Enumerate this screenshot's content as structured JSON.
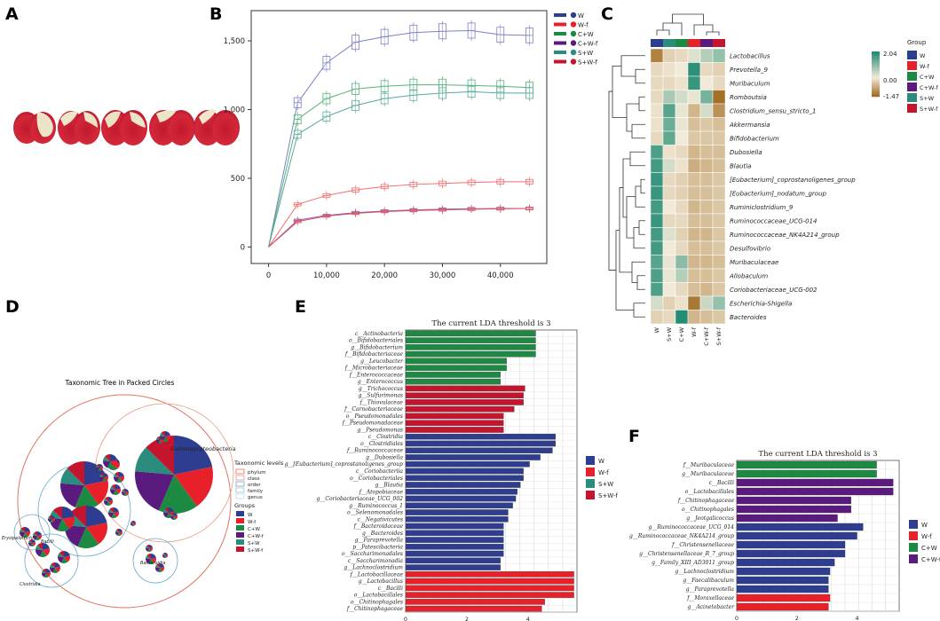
{
  "panels": {
    "A": {
      "letter": "A"
    },
    "B": {
      "letter": "B"
    },
    "C": {
      "letter": "C"
    },
    "D": {
      "letter": "D"
    },
    "E": {
      "letter": "E"
    },
    "F": {
      "letter": "F"
    }
  },
  "colors": {
    "W": "#2e3d8f",
    "W-f": "#e8202a",
    "C+W": "#1d8a44",
    "C+W-f": "#5a1a7e",
    "S+W": "#2a8c7c",
    "S+W-f": "#c4142e",
    "heat_hi": "#1f8a72",
    "heat_mid": "#f2ead8",
    "heat_lo": "#a06a1e"
  },
  "chart_data": [
    {
      "id": "B",
      "type": "line",
      "title": "",
      "xlabel": "",
      "ylabel": "",
      "xlim": [
        -3000,
        48000
      ],
      "ylim": [
        -120,
        1720
      ],
      "xticks": [
        0,
        10000,
        20000,
        30000,
        40000
      ],
      "xtick_labels": [
        "0",
        "10,000",
        "20,000",
        "30,000",
        "40,000"
      ],
      "yticks": [
        0,
        500,
        1000,
        1500
      ],
      "ytick_labels": [
        "0",
        "500",
        "1,000",
        "1,500"
      ],
      "x": [
        0,
        5000,
        10000,
        15000,
        20000,
        25000,
        30000,
        35000,
        40000,
        45000
      ],
      "series": [
        {
          "name": "W",
          "color": "#7b80c4",
          "values": [
            0,
            1050,
            1340,
            1490,
            1530,
            1560,
            1570,
            1575,
            1545,
            1540
          ]
        },
        {
          "name": "W-f",
          "color": "#f26d6d",
          "values": [
            0,
            310,
            375,
            415,
            440,
            455,
            463,
            470,
            475,
            475
          ]
        },
        {
          "name": "C+W",
          "color": "#55b27a",
          "values": [
            0,
            930,
            1080,
            1150,
            1170,
            1180,
            1180,
            1175,
            1170,
            1160
          ]
        },
        {
          "name": "C+W-f",
          "color": "#8f5aa8",
          "values": [
            0,
            195,
            230,
            250,
            262,
            270,
            275,
            278,
            280,
            280
          ]
        },
        {
          "name": "S+W",
          "color": "#5aa99a",
          "values": [
            0,
            820,
            950,
            1030,
            1080,
            1105,
            1120,
            1130,
            1120,
            1120
          ]
        },
        {
          "name": "S+W-f",
          "color": "#d8505f",
          "values": [
            0,
            185,
            225,
            245,
            258,
            265,
            270,
            275,
            278,
            280
          ]
        }
      ],
      "legend": [
        "W",
        "W-f",
        "C+W",
        "C+W-f",
        "S+W",
        "S+W-f"
      ]
    },
    {
      "id": "C",
      "type": "heatmap",
      "columns": [
        "W",
        "S+W",
        "C+W",
        "W-f",
        "C+W-f",
        "S+W-f"
      ],
      "rows": [
        "Lactobacillus",
        "Prevotella_9",
        "Muribaculum",
        "Romboutsia",
        "Clostridium_sensu_stricto_1",
        "Akkermansia",
        "Bifidobacterium",
        "Dubosiella",
        "Blautia",
        "[Eubacterium]_coprostanoligenes_group",
        "[Eubacterium]_nodatum_group",
        "Ruminiclostridium_9",
        "Ruminococcaceae_UCG-014",
        "Ruminococcaceae_NK4A214_group",
        "Desulfovibrio",
        "Muribaculaceae",
        "Allobaculum",
        "Coriobacteriaceae_UCG-002",
        "Escherichia-Shigella",
        "Bacteroides"
      ],
      "values": [
        [
          -1.2,
          -0.3,
          -0.2,
          0.2,
          0.6,
          0.9
        ],
        [
          -0.2,
          -0.1,
          0.0,
          1.9,
          -0.2,
          -0.3
        ],
        [
          -0.2,
          -0.2,
          -0.1,
          1.8,
          0.0,
          -0.2
        ],
        [
          -0.2,
          0.7,
          0.3,
          0.1,
          1.2,
          -1.4
        ],
        [
          -0.1,
          1.5,
          0.1,
          -0.6,
          0.3,
          -1.0
        ],
        [
          -0.1,
          1.3,
          0.1,
          -0.5,
          -0.4,
          -0.5
        ],
        [
          -0.2,
          1.4,
          0.0,
          -0.4,
          -0.4,
          -0.4
        ],
        [
          1.6,
          -0.1,
          -0.2,
          -0.6,
          -0.5,
          -0.5
        ],
        [
          1.7,
          0.3,
          -0.1,
          -0.7,
          -0.6,
          -0.5
        ],
        [
          1.8,
          -0.2,
          -0.3,
          -0.5,
          -0.5,
          -0.4
        ],
        [
          1.8,
          -0.2,
          -0.3,
          -0.5,
          -0.5,
          -0.4
        ],
        [
          1.7,
          0.0,
          -0.2,
          -0.6,
          -0.5,
          -0.4
        ],
        [
          1.8,
          -0.2,
          -0.2,
          -0.5,
          -0.5,
          -0.4
        ],
        [
          1.7,
          0.2,
          -0.3,
          -0.6,
          -0.6,
          -0.4
        ],
        [
          1.7,
          0.0,
          -0.2,
          -0.5,
          -0.5,
          -0.4
        ],
        [
          1.5,
          0.1,
          1.0,
          -0.6,
          -0.6,
          -0.5
        ],
        [
          1.6,
          0.1,
          0.6,
          -0.5,
          -0.5,
          -0.4
        ],
        [
          1.6,
          0.0,
          -0.2,
          -0.5,
          -0.6,
          -0.4
        ],
        [
          0.3,
          -0.3,
          -0.1,
          -1.3,
          0.4,
          0.9
        ],
        [
          -0.3,
          -0.2,
          2.0,
          -0.6,
          -0.5,
          -0.4
        ]
      ],
      "vmin": -1.47,
      "vmax": 2.04,
      "colorbar_labels": [
        "2.04",
        "0.00",
        "-1.47"
      ],
      "group_title": "Group",
      "groups": [
        "W",
        "W-f",
        "C+W",
        "C+W-f",
        "S+W",
        "S+W-f"
      ]
    },
    {
      "id": "D",
      "type": "other",
      "title": "Taxonomic Tree in Packed Circles",
      "circle_labels": [
        "Gammaproteobacteria",
        "Erysipelotrichi",
        "Bacilli",
        "Clostridia",
        "Bacteroidia"
      ],
      "levels_title": "Taxonomic levels",
      "levels": [
        "phylum",
        "class",
        "order",
        "family",
        "genus"
      ],
      "groups_title": "Groups",
      "groups": [
        "W",
        "W-f",
        "C+W",
        "C+W-f",
        "S+W",
        "S+W-f"
      ]
    },
    {
      "id": "E",
      "type": "bar",
      "orientation": "horizontal",
      "title": "The current LDA threshold is 3",
      "xlim": [
        0,
        5.6
      ],
      "xticks": [
        0,
        2,
        4
      ],
      "categories": [
        "c__Actinobacteria",
        "o__Bifidobacteriales",
        "g__Bifidobacterium",
        "f__Bifidobacteriaceae",
        "g__Leucobacter",
        "f__Microbacteriaceae",
        "f__Enterococcaceae",
        "g__Enterococcus",
        "g__Trichococcus",
        "g__Sulfurimonas",
        "f__Thiovulaceae",
        "f__Carnobacteriaceae",
        "o__Pseudomonadales",
        "f__Pseudomonadaceae",
        "g__Pseudomonas",
        "c__Clostridia",
        "o__Clostridiales",
        "f__Ruminococcaceae",
        "g__Dubosiella",
        "g__[Eubacterium]_coprostanoligenes_group",
        "c__Coriobacteriia",
        "o__Coriobacteriales",
        "g__Blautia",
        "f__Atopobiaceae",
        "g__Coriobacteriaceae_UCG_002",
        "g__Ruminococcus_1",
        "o__Selenomonadales",
        "c__Negativicutes",
        "f__Bacteroidaceae",
        "g__Bacteroides",
        "g__Paraprevotella",
        "p__Patescibacteria",
        "o__Saccharimonadales",
        "c__Saccharimonadia",
        "g__Lachnoclostridium",
        "f__Lactobacillaceae",
        "g__Lactobacillus",
        "c__Bacilli",
        "o__Lactobacillales",
        "o__Chitinophagales",
        "f__Chitinophagaceae"
      ],
      "values": [
        4.25,
        4.25,
        4.25,
        4.25,
        3.3,
        3.3,
        3.1,
        3.1,
        3.9,
        3.85,
        3.85,
        3.55,
        3.2,
        3.2,
        3.2,
        4.9,
        4.9,
        4.8,
        4.4,
        4.05,
        3.85,
        3.85,
        3.75,
        3.65,
        3.6,
        3.5,
        3.35,
        3.35,
        3.2,
        3.2,
        3.2,
        3.2,
        3.2,
        3.1,
        3.1,
        5.5,
        5.5,
        5.5,
        5.5,
        4.55,
        4.45
      ],
      "groups": [
        "C+W",
        "C+W",
        "C+W",
        "C+W",
        "C+W",
        "C+W",
        "C+W",
        "C+W",
        "S+W-f",
        "S+W-f",
        "S+W-f",
        "S+W-f",
        "S+W-f",
        "S+W-f",
        "S+W-f",
        "W",
        "W",
        "W",
        "W",
        "W",
        "W",
        "W",
        "W",
        "W",
        "W",
        "W",
        "W",
        "W",
        "W",
        "W",
        "W",
        "W",
        "W",
        "W",
        "W",
        "W-f",
        "W-f",
        "W-f",
        "W-f",
        "W-f",
        "W-f"
      ],
      "legend": [
        "W",
        "W-f",
        "S+W",
        "S+W-f"
      ]
    },
    {
      "id": "F",
      "type": "bar",
      "orientation": "horizontal",
      "title": "The current LDA threshold is 3",
      "xlim": [
        0,
        5.4
      ],
      "xticks": [
        0,
        2,
        4
      ],
      "categories": [
        "f__Muribaculaceae",
        "g__Muribaculaceae",
        "c__Bacilli",
        "o__Lactobacillales",
        "f__Chitinophagaceae",
        "o__Chitinophagales",
        "g__Jeotgalicoccus",
        "g__Ruminococcaceae_UCG_014",
        "g__Ruminococcaceae_NK4A214_group",
        "f__Christensenellaceae",
        "g__Christensenellaceae_R_7_group",
        "g__Family_XIII_AD3011_group",
        "g__Lachnoclostridium",
        "g__Faecalibaculum",
        "g__Paraprevotella",
        "f__Moraxellaceae",
        "g__Acinetobacter"
      ],
      "values": [
        4.65,
        4.65,
        5.2,
        5.2,
        3.8,
        3.8,
        3.35,
        4.2,
        4.0,
        3.6,
        3.6,
        3.25,
        3.1,
        3.05,
        3.05,
        3.1,
        3.05
      ],
      "groups": [
        "C+W",
        "C+W",
        "C+W-f",
        "C+W-f",
        "C+W-f",
        "C+W-f",
        "C+W-f",
        "W",
        "W",
        "W",
        "W",
        "W",
        "W",
        "W",
        "W",
        "W-f",
        "W-f"
      ],
      "legend": [
        "W",
        "W-f",
        "C+W",
        "C+W-f"
      ]
    }
  ]
}
